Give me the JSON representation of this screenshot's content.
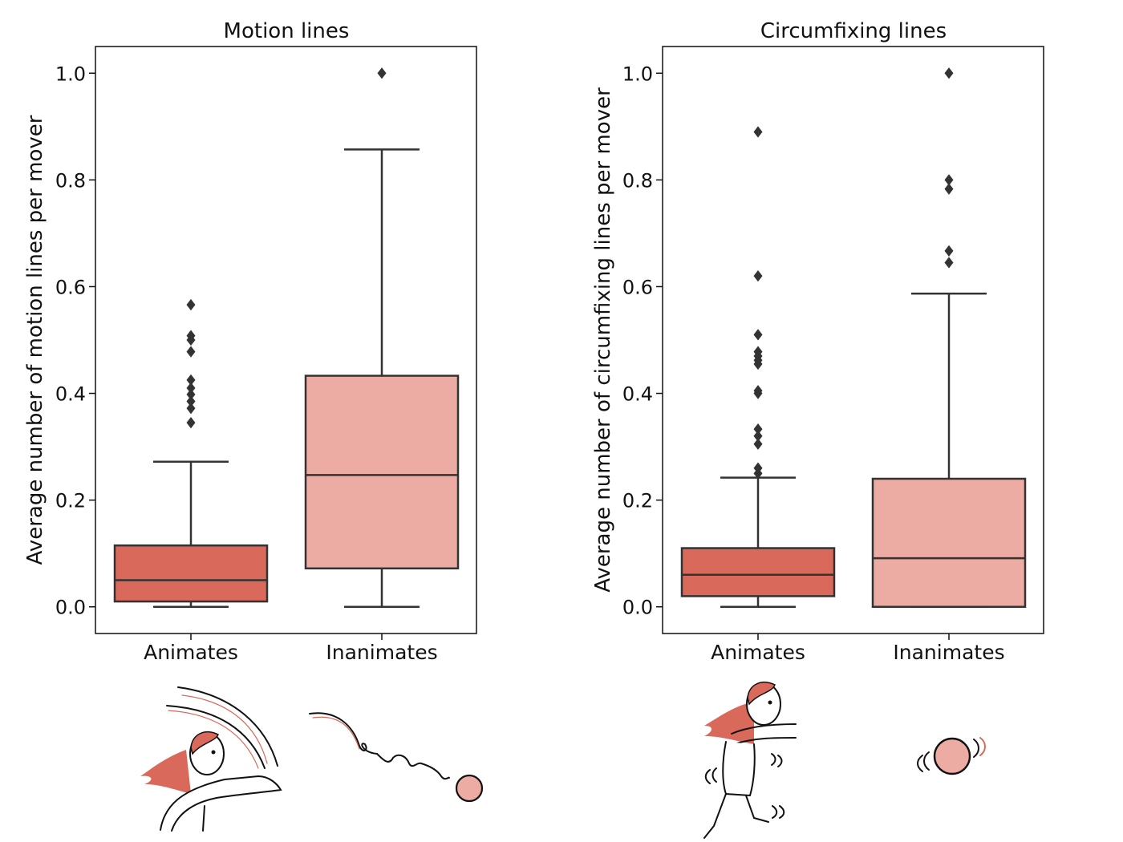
{
  "colors": {
    "animates": "#D9695A",
    "inanimates": "#ECABA3",
    "edge": "#333333",
    "outlier": "#333333",
    "hair": "#D9695A",
    "ink": "#111111"
  },
  "chart_data": [
    {
      "type": "box",
      "title": "Motion lines",
      "ylabel": "Average number of motion lines per mover",
      "xlabel": "",
      "ylim": [
        -0.05,
        1.05
      ],
      "yticks": [
        0.0,
        0.2,
        0.4,
        0.6,
        0.8,
        1.0
      ],
      "ytick_labels": [
        "0.0",
        "0.2",
        "0.4",
        "0.6",
        "0.8",
        "1.0"
      ],
      "grid": false,
      "categories": [
        "Animates",
        "Inanimates"
      ],
      "boxes": [
        {
          "category": "Animates",
          "whisker_low": 0.0,
          "q1": 0.01,
          "median": 0.05,
          "q3": 0.115,
          "whisker_high": 0.272,
          "outliers": [
            0.345,
            0.372,
            0.385,
            0.398,
            0.41,
            0.425,
            0.478,
            0.5,
            0.508,
            0.566
          ]
        },
        {
          "category": "Inanimates",
          "whisker_low": 0.0,
          "q1": 0.072,
          "median": 0.247,
          "q3": 0.433,
          "whisker_high": 0.857,
          "outliers": [
            1.0
          ]
        }
      ]
    },
    {
      "type": "box",
      "title": "Circumfixing lines",
      "ylabel": "Average number of circumfixing lines per mover",
      "xlabel": "",
      "ylim": [
        -0.05,
        1.05
      ],
      "yticks": [
        0.0,
        0.2,
        0.4,
        0.6,
        0.8,
        1.0
      ],
      "ytick_labels": [
        "0.0",
        "0.2",
        "0.4",
        "0.6",
        "0.8",
        "1.0"
      ],
      "grid": false,
      "categories": [
        "Animates",
        "Inanimates"
      ],
      "boxes": [
        {
          "category": "Animates",
          "whisker_low": 0.0,
          "q1": 0.02,
          "median": 0.06,
          "q3": 0.11,
          "whisker_high": 0.242,
          "outliers": [
            0.25,
            0.26,
            0.305,
            0.32,
            0.333,
            0.4,
            0.405,
            0.455,
            0.462,
            0.47,
            0.478,
            0.51,
            0.62,
            0.89
          ]
        },
        {
          "category": "Inanimates",
          "whisker_low": 0.0,
          "q1": 0.0,
          "median": 0.091,
          "q3": 0.24,
          "whisker_high": 0.587,
          "outliers": [
            0.645,
            0.667,
            0.783,
            0.8,
            1.0
          ]
        }
      ]
    }
  ],
  "illustrations": [
    {
      "name": "girl-running-with-motion-lines-icon"
    },
    {
      "name": "ball-bouncing-with-motion-path-icon"
    },
    {
      "name": "girl-running-with-circumfixing-lines-icon"
    },
    {
      "name": "ball-with-circumfixing-lines-icon"
    }
  ]
}
